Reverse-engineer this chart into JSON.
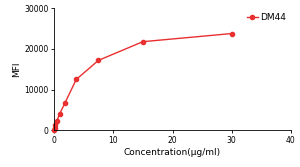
{
  "x": [
    0.0,
    0.12,
    0.23,
    0.47,
    0.94,
    1.88,
    3.75,
    7.5,
    15.0,
    30.0
  ],
  "y": [
    0,
    500,
    1200,
    2200,
    4000,
    6800,
    12500,
    17200,
    21800,
    23800
  ],
  "line_color": "#e83030",
  "marker": "o",
  "marker_size": 3.0,
  "legend_label": "DM44",
  "xlabel": "Concentration(μg/ml)",
  "ylabel": "MFI",
  "xlim": [
    0,
    40
  ],
  "ylim": [
    0,
    30000
  ],
  "xticks": [
    0,
    10,
    20,
    30,
    40
  ],
  "yticks": [
    0,
    10000,
    20000,
    30000
  ],
  "axis_fontsize": 6.5,
  "tick_fontsize": 5.5,
  "legend_fontsize": 6.5,
  "background_color": "#ffffff",
  "linewidth": 1.0
}
